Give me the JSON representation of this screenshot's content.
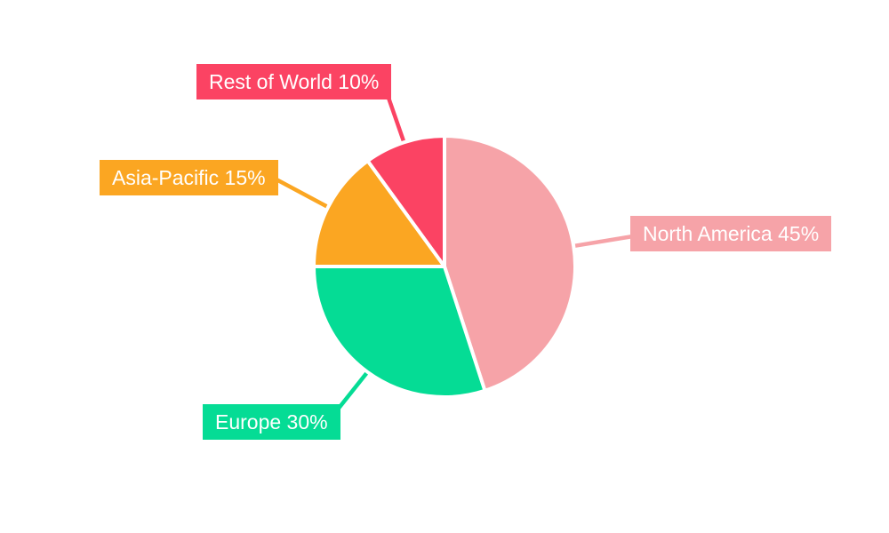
{
  "chart_data": {
    "type": "pie",
    "title": "",
    "categories": [
      "North America",
      "Europe",
      "Asia-Pacific",
      "Rest of World"
    ],
    "values": [
      45,
      30,
      15,
      10
    ],
    "unit": "%",
    "start_angle_deg_from_top": 0,
    "direction": "clockwise",
    "legend_position": "callout-labels",
    "background_color": "#FFFFFF",
    "label_text_color": "#FFFFFF",
    "slices": [
      {
        "label": "North America",
        "value": 45,
        "display": "North America 45%",
        "color": "#F6A3A8"
      },
      {
        "label": "Europe",
        "value": 30,
        "display": "Europe 30%",
        "color": "#05DC95"
      },
      {
        "label": "Asia-Pacific",
        "value": 15,
        "display": "Asia-Pacific 15%",
        "color": "#FBA622"
      },
      {
        "label": "Rest of World",
        "value": 10,
        "display": "Rest of World 10%",
        "color": "#FB4363"
      }
    ]
  }
}
